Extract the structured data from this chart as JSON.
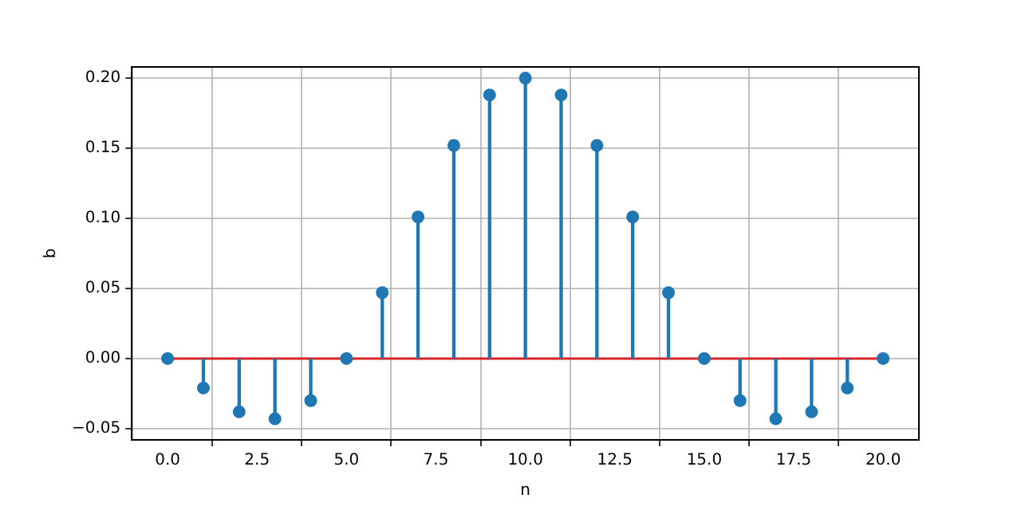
{
  "chart_data": {
    "type": "lollipop",
    "xlabel": "n",
    "ylabel": "b",
    "x": [
      0,
      1,
      2,
      3,
      4,
      5,
      6,
      7,
      8,
      9,
      10,
      11,
      12,
      13,
      14,
      15,
      16,
      17,
      18,
      19,
      20
    ],
    "values": [
      0,
      -0.021,
      -0.038,
      -0.043,
      -0.03,
      0,
      0.047,
      0.101,
      0.152,
      0.188,
      0.2,
      0.188,
      0.152,
      0.101,
      0.047,
      0,
      -0.03,
      -0.043,
      -0.038,
      -0.021,
      0
    ],
    "color": "#1f77b4",
    "marker": "circle",
    "grid": true,
    "xlim": [
      -1,
      21
    ],
    "ylim": [
      -0.058,
      0.208
    ],
    "xticks": [
      {
        "value": 0,
        "label": "0.0"
      },
      {
        "value": 2.5,
        "label": "2.5"
      },
      {
        "value": 5,
        "label": "5.0"
      },
      {
        "value": 7.5,
        "label": "7.5"
      },
      {
        "value": 10,
        "label": "10.0"
      },
      {
        "value": 12.5,
        "label": "12.5"
      },
      {
        "value": 15,
        "label": "15.0"
      },
      {
        "value": 17.5,
        "label": "17.5"
      },
      {
        "value": 20,
        "label": "20.0"
      }
    ],
    "yticks": [
      {
        "value": -0.05,
        "label": "−0.05"
      },
      {
        "value": 0,
        "label": "0.00"
      },
      {
        "value": 0.05,
        "label": "0.05"
      },
      {
        "value": 0.1,
        "label": "0.10"
      },
      {
        "value": 0.15,
        "label": "0.15"
      },
      {
        "value": 0.2,
        "label": "0.20"
      }
    ],
    "ref_lines": [
      {
        "axis": "y",
        "value": 0,
        "color": "#d62728"
      }
    ]
  }
}
